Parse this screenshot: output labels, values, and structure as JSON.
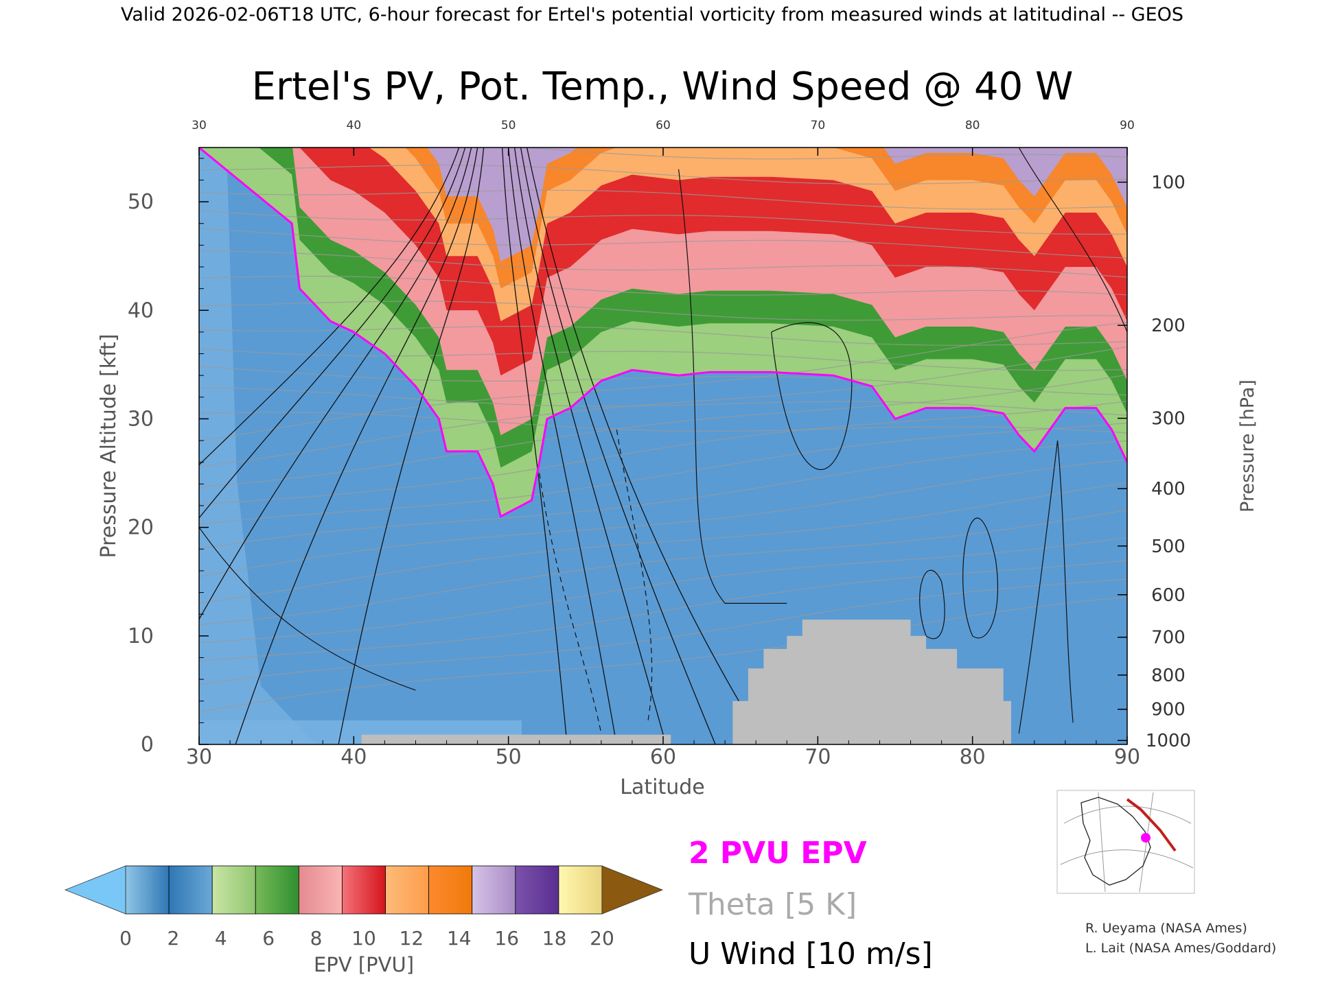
{
  "header": {
    "valid_line": "Valid 2026-02-06T18 UTC, 6-hour forecast for Ertel's potential vorticity from measured winds at latitudinal -- GEOS"
  },
  "chart_data": {
    "type": "heatmap",
    "title": "Ertel's PV, Pot. Temp., Wind Speed @ 40 W",
    "xlabel": "Latitude",
    "ylabel_left": "Pressure Altitude [kft]",
    "ylabel_right": "Pressure [hPa]",
    "xlim": [
      30,
      90
    ],
    "ylim_kft": [
      0,
      55
    ],
    "x_ticks": [
      "30",
      "40",
      "50",
      "60",
      "70",
      "80",
      "90"
    ],
    "y_ticks_kft": [
      "0",
      "10",
      "20",
      "30",
      "40",
      "50"
    ],
    "pressure_ticks": [
      {
        "hpa": 1000,
        "label": "1000"
      },
      {
        "hpa": 900,
        "label": "900"
      },
      {
        "hpa": 800,
        "label": "800"
      },
      {
        "hpa": 700,
        "label": "700"
      },
      {
        "hpa": 600,
        "label": "600"
      },
      {
        "hpa": 500,
        "label": "500"
      },
      {
        "hpa": 400,
        "label": "400"
      },
      {
        "hpa": 300,
        "label": "300"
      },
      {
        "hpa": 200,
        "label": "200"
      },
      {
        "hpa": 100,
        "label": "100"
      }
    ],
    "epv_2pvu_boundary_kft": [
      {
        "lat": 30.0,
        "kft": 55
      },
      {
        "lat": 36.0,
        "kft": 48
      },
      {
        "lat": 36.5,
        "kft": 42
      },
      {
        "lat": 38.5,
        "kft": 39
      },
      {
        "lat": 40.0,
        "kft": 38
      },
      {
        "lat": 42.0,
        "kft": 36
      },
      {
        "lat": 44.0,
        "kft": 33
      },
      {
        "lat": 45.5,
        "kft": 30
      },
      {
        "lat": 46.0,
        "kft": 27
      },
      {
        "lat": 48.0,
        "kft": 27
      },
      {
        "lat": 49.0,
        "kft": 24
      },
      {
        "lat": 49.5,
        "kft": 21
      },
      {
        "lat": 51.5,
        "kft": 22.5
      },
      {
        "lat": 52.0,
        "kft": 26
      },
      {
        "lat": 52.5,
        "kft": 30
      },
      {
        "lat": 54.0,
        "kft": 31
      },
      {
        "lat": 56.0,
        "kft": 33.5
      },
      {
        "lat": 58.0,
        "kft": 34.5
      },
      {
        "lat": 61.0,
        "kft": 34
      },
      {
        "lat": 63.0,
        "kft": 34.3
      },
      {
        "lat": 67.0,
        "kft": 34.3
      },
      {
        "lat": 71.0,
        "kft": 34
      },
      {
        "lat": 73.5,
        "kft": 33
      },
      {
        "lat": 75.0,
        "kft": 30
      },
      {
        "lat": 77.0,
        "kft": 31
      },
      {
        "lat": 80.0,
        "kft": 31
      },
      {
        "lat": 82.0,
        "kft": 30.5
      },
      {
        "lat": 83.0,
        "kft": 28.5
      },
      {
        "lat": 84.0,
        "kft": 27
      },
      {
        "lat": 85.0,
        "kft": 29
      },
      {
        "lat": 86.0,
        "kft": 31
      },
      {
        "lat": 88.0,
        "kft": 31
      },
      {
        "lat": 89.0,
        "kft": 29
      },
      {
        "lat": 90.0,
        "kft": 26
      }
    ],
    "pv_bands": [
      {
        "pvu_low": 2,
        "pvu_high": 4,
        "color": "#9ccf7e",
        "offset_kft": 1.5
      },
      {
        "pvu_low": 4,
        "pvu_high": 6,
        "color": "#3f9b36",
        "offset_kft": 4.5
      },
      {
        "pvu_low": 6,
        "pvu_high": 8,
        "color": "#f29a9e",
        "offset_kft": 7.5
      },
      {
        "pvu_low": 8,
        "pvu_high": 10,
        "color": "#e12b2d",
        "offset_kft": 13
      },
      {
        "pvu_low": 10,
        "pvu_high": 12,
        "color": "#fdb06a",
        "offset_kft": 18
      },
      {
        "pvu_low": 12,
        "pvu_high": 14,
        "color": "#f8862a",
        "offset_kft": 21
      },
      {
        "pvu_low": 14,
        "pvu_high": 16,
        "color": "#b89fcf",
        "offset_kft": 23.5
      }
    ],
    "terrain": [
      {
        "lat0": 40.5,
        "lat1": 60.5,
        "kft": 0.9
      },
      {
        "lat0": 64.5,
        "lat1": 82.5,
        "kft": 4.0
      },
      {
        "lat0": 65.5,
        "lat1": 82.0,
        "kft": 7.0
      },
      {
        "lat0": 66.5,
        "lat1": 79.0,
        "kft": 8.8
      },
      {
        "lat0": 68.0,
        "lat1": 77.0,
        "kft": 10.0
      },
      {
        "lat0": 69.0,
        "lat1": 76.0,
        "kft": 11.5
      }
    ],
    "colorbar": {
      "label": "EPV [PVU]",
      "ticks": [
        "0",
        "2",
        "4",
        "6",
        "8",
        "10",
        "12",
        "14",
        "16",
        "18",
        "20"
      ],
      "segments": [
        [
          "#8fc5e6",
          "#2f77b5"
        ],
        [
          "#2f77b5",
          "#6aa8d6"
        ],
        [
          "#c9e5a5",
          "#8fc56e"
        ],
        [
          "#77b95a",
          "#2f8f2f"
        ],
        [
          "#e48a90",
          "#fbb5b3"
        ],
        [
          "#f4727a",
          "#d5151d"
        ],
        [
          "#fdbb7a",
          "#fd9d4a"
        ],
        [
          "#fb8a2e",
          "#f07a0a"
        ],
        [
          "#d6c3e6",
          "#a88cc6"
        ],
        [
          "#7a52aa",
          "#5a2d91"
        ],
        [
          "#fff7b0",
          "#ead57e"
        ]
      ],
      "low_color": "#79c7f6",
      "high_color": "#8b5a10"
    },
    "legend": {
      "epv_line": "2 PVU EPV",
      "theta": "Theta [5 K]",
      "wind": "U Wind [10 m/s]"
    },
    "colors": {
      "troposphere": "#5a9bd4",
      "troposphere_light": "#7ab4e3",
      "terrain": "#bebebe",
      "epv_contour": "#ff00ff",
      "theta_contour": "#9a9a9a"
    }
  },
  "credits": {
    "line1": "R. Ueyama (NASA Ames)",
    "line2": "L. Lait (NASA Ames/Goddard)"
  }
}
